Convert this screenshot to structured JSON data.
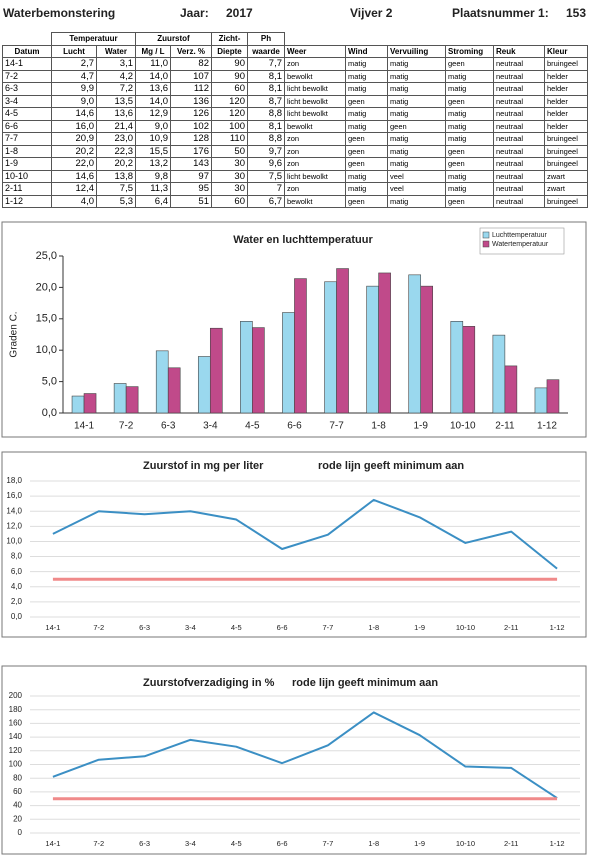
{
  "header": {
    "title": "Waterbemonstering",
    "year_label": "Jaar:",
    "year": "2017",
    "pond": "Vijver 2",
    "place_label": "Plaatsnummer 1:",
    "place_number": "153"
  },
  "table": {
    "group_headers": [
      "Temperatuur",
      "Zuurstof",
      "Zicht-",
      "Ph"
    ],
    "columns": [
      "Datum",
      "Lucht",
      "Water",
      "Mg / L",
      "Verz. %",
      "Diepte",
      "waarde",
      "Weer",
      "Wind",
      "Vervuiling",
      "Stroming",
      "Reuk",
      "Kleur"
    ],
    "rows": [
      [
        "14-1",
        "2,7",
        "3,1",
        "11,0",
        "82",
        "90",
        "7,7",
        "zon",
        "matig",
        "matig",
        "geen",
        "neutraal",
        "bruingeel"
      ],
      [
        "7-2",
        "4,7",
        "4,2",
        "14,0",
        "107",
        "90",
        "8,1",
        "bewolkt",
        "matig",
        "matig",
        "matig",
        "neutraal",
        "helder"
      ],
      [
        "6-3",
        "9,9",
        "7,2",
        "13,6",
        "112",
        "60",
        "8,1",
        "licht bewolkt",
        "matig",
        "matig",
        "matig",
        "neutraal",
        "helder"
      ],
      [
        "3-4",
        "9,0",
        "13,5",
        "14,0",
        "136",
        "120",
        "8,7",
        "licht bewolkt",
        "geen",
        "matig",
        "geen",
        "neutraal",
        "helder"
      ],
      [
        "4-5",
        "14,6",
        "13,6",
        "12,9",
        "126",
        "120",
        "8,8",
        "licht bewolkt",
        "matig",
        "matig",
        "matig",
        "neutraal",
        "helder"
      ],
      [
        "6-6",
        "16,0",
        "21,4",
        "9,0",
        "102",
        "100",
        "8,1",
        "bewolkt",
        "matig",
        "geen",
        "matig",
        "neutraal",
        "helder"
      ],
      [
        "7-7",
        "20,9",
        "23,0",
        "10,9",
        "128",
        "110",
        "8,8",
        "zon",
        "geen",
        "matig",
        "matig",
        "neutraal",
        "bruingeel"
      ],
      [
        "1-8",
        "20,2",
        "22,3",
        "15,5",
        "176",
        "50",
        "9,7",
        "zon",
        "geen",
        "matig",
        "geen",
        "neutraal",
        "bruingeel"
      ],
      [
        "1-9",
        "22,0",
        "20,2",
        "13,2",
        "143",
        "30",
        "9,6",
        "zon",
        "geen",
        "matig",
        "geen",
        "neutraal",
        "bruingeel"
      ],
      [
        "10-10",
        "14,6",
        "13,8",
        "9,8",
        "97",
        "30",
        "7,5",
        "licht bewolkt",
        "matig",
        "veel",
        "matig",
        "neutraal",
        "zwart"
      ],
      [
        "2-11",
        "12,4",
        "7,5",
        "11,3",
        "95",
        "30",
        "7",
        "zon",
        "matig",
        "veel",
        "matig",
        "neutraal",
        "zwart"
      ],
      [
        "1-12",
        "4,0",
        "5,3",
        "6,4",
        "51",
        "60",
        "6,7",
        "bewolkt",
        "geen",
        "matig",
        "geen",
        "neutraal",
        "bruingeel"
      ]
    ]
  },
  "chart_data": [
    {
      "type": "bar",
      "title": "Water en luchttemperatuur",
      "y_label": "Graden C.",
      "categories": [
        "14-1",
        "7-2",
        "6-3",
        "3-4",
        "4-5",
        "6-6",
        "7-7",
        "1-8",
        "1-9",
        "10-10",
        "2-11",
        "1-12"
      ],
      "series": [
        {
          "name": "Luchttemperatuur",
          "color": "#9ad8ee",
          "values": [
            2.7,
            4.7,
            9.9,
            9.0,
            14.6,
            16.0,
            20.9,
            20.2,
            22.0,
            14.6,
            12.4,
            4.0
          ]
        },
        {
          "name": "Watertemperatuur",
          "color": "#c04a8a",
          "values": [
            3.1,
            4.2,
            7.2,
            13.5,
            13.6,
            21.4,
            23.0,
            22.3,
            20.2,
            13.8,
            7.5,
            5.3
          ]
        }
      ],
      "ylim": [
        0,
        25
      ],
      "yticks": [
        {
          "value": 0,
          "label": "0,0"
        },
        {
          "value": 5,
          "label": "5,0"
        },
        {
          "value": 10,
          "label": "10,0"
        },
        {
          "value": 15,
          "label": "15,0"
        },
        {
          "value": 20,
          "label": "20,0"
        },
        {
          "value": 25,
          "label": "25,0"
        }
      ],
      "grid": false,
      "legend": "upper right"
    },
    {
      "type": "line",
      "title": "Zuurstof in mg per liter",
      "annotation": "rode lijn geeft minimum aan",
      "categories": [
        "14-1",
        "7-2",
        "6-3",
        "3-4",
        "4-5",
        "6-6",
        "7-7",
        "1-8",
        "1-9",
        "10-10",
        "2-11",
        "1-12"
      ],
      "series": [
        {
          "color": "#3b8fc4",
          "values": [
            11.0,
            14.0,
            13.6,
            14.0,
            12.9,
            9.0,
            10.9,
            15.5,
            13.2,
            9.8,
            11.3,
            6.4
          ]
        },
        {
          "color": "#f08a8a",
          "values": [
            5,
            5,
            5,
            5,
            5,
            5,
            5,
            5,
            5,
            5,
            5,
            5
          ]
        }
      ],
      "ylim": [
        0,
        18
      ],
      "yticks": [
        {
          "value": 0,
          "label": "0,0"
        },
        {
          "value": 2,
          "label": "2,0"
        },
        {
          "value": 4,
          "label": "4,0"
        },
        {
          "value": 6,
          "label": "6,0"
        },
        {
          "value": 8,
          "label": "8,0"
        },
        {
          "value": 10,
          "label": "10,0"
        },
        {
          "value": 12,
          "label": "12,0"
        },
        {
          "value": 14,
          "label": "14,0"
        },
        {
          "value": 16,
          "label": "16,0"
        },
        {
          "value": 18,
          "label": "18,0"
        }
      ],
      "grid": true
    },
    {
      "type": "line",
      "title": "Zuurstofverzadiging in %",
      "annotation": "rode lijn geeft minimum aan",
      "categories": [
        "14-1",
        "7-2",
        "6-3",
        "3-4",
        "4-5",
        "6-6",
        "7-7",
        "1-8",
        "1-9",
        "10-10",
        "2-11",
        "1-12"
      ],
      "series": [
        {
          "color": "#3b8fc4",
          "values": [
            82,
            107,
            112,
            136,
            126,
            102,
            128,
            176,
            143,
            97,
            95,
            51
          ]
        },
        {
          "color": "#f08a8a",
          "values": [
            50,
            50,
            50,
            50,
            50,
            50,
            50,
            50,
            50,
            50,
            50,
            50
          ]
        }
      ],
      "ylim": [
        0,
        200
      ],
      "yticks": [
        0,
        20,
        40,
        60,
        80,
        100,
        120,
        140,
        160,
        180,
        200
      ],
      "grid": true
    }
  ]
}
